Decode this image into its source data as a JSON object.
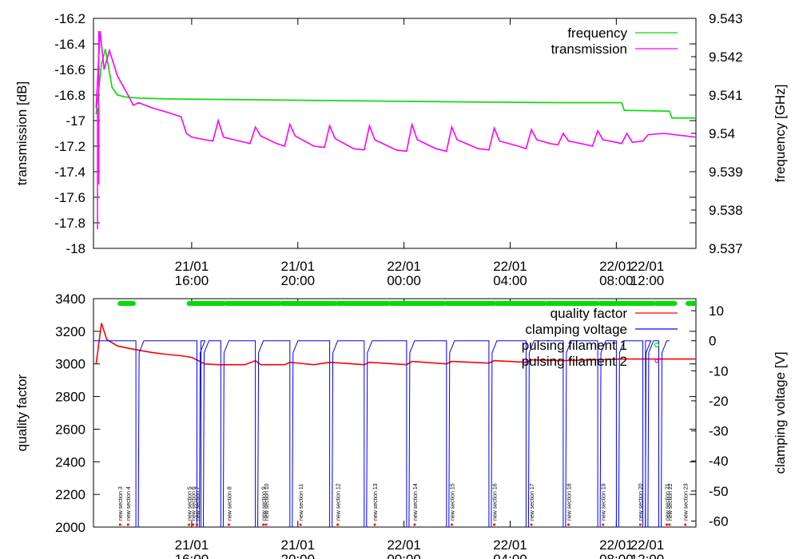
{
  "chart_data": [
    {
      "type": "line",
      "ylabel": "transmission [dB]",
      "y2label": "frequency [GHz]",
      "ylim": [
        -18,
        -16.2
      ],
      "y2lim": [
        9.537,
        9.543
      ],
      "yticks": [
        "-16.2",
        "-16.4",
        "-16.6",
        "-16.8",
        "-17",
        "-17.2",
        "-17.4",
        "-17.6",
        "-17.8",
        "-18"
      ],
      "y2ticks": [
        "9.543",
        "9.542",
        "9.541",
        "9.54",
        "9.539",
        "9.538",
        "9.537"
      ],
      "xlim_hours": [
        12.3,
        35.0
      ],
      "xticks": [
        {
          "h": 16,
          "line1": "21/01",
          "line2": "16:00"
        },
        {
          "h": 20,
          "line1": "21/01",
          "line2": "20:00"
        },
        {
          "h": 24,
          "line1": "22/01",
          "line2": "00:00"
        },
        {
          "h": 28,
          "line1": "22/01",
          "line2": "04:00"
        },
        {
          "h": 32,
          "line1": "22/01",
          "line2": "08:00"
        },
        {
          "h": 36,
          "line1": "22/01",
          "line2": "12:00"
        }
      ],
      "legend": [
        "frequency",
        "transmission"
      ],
      "series": [
        {
          "name": "frequency",
          "axis": "y2",
          "color": "#00dd00",
          "points": [
            [
              12.4,
              9.5405
            ],
            [
              12.6,
              9.5418
            ],
            [
              12.75,
              9.5422
            ],
            [
              12.9,
              9.5416
            ],
            [
              13.0,
              9.5412
            ],
            [
              13.2,
              9.541
            ],
            [
              13.5,
              9.54095
            ],
            [
              14.0,
              9.54092
            ],
            [
              15.0,
              9.5409
            ],
            [
              18.0,
              9.54088
            ],
            [
              22.0,
              9.54085
            ],
            [
              26.0,
              9.54082
            ],
            [
              30.0,
              9.5408
            ],
            [
              32.2,
              9.5408
            ],
            [
              32.3,
              9.5406
            ],
            [
              34.0,
              9.54058
            ],
            [
              34.1,
              9.5404
            ],
            [
              35.0,
              9.5404
            ]
          ]
        },
        {
          "name": "transmission",
          "axis": "y",
          "color": "#ff00ff",
          "points": [
            [
              12.4,
              -16.9
            ],
            [
              12.55,
              -16.3
            ],
            [
              12.7,
              -16.6
            ],
            [
              12.9,
              -16.45
            ],
            [
              13.2,
              -16.65
            ],
            [
              13.6,
              -16.8
            ],
            [
              13.8,
              -16.88
            ],
            [
              14.0,
              -16.86
            ],
            [
              14.5,
              -16.9
            ],
            [
              15.0,
              -16.93
            ],
            [
              15.6,
              -16.97
            ],
            [
              15.8,
              -17.1
            ],
            [
              16.0,
              -17.13
            ],
            [
              16.5,
              -17.15
            ],
            [
              16.8,
              -17.16
            ],
            [
              17.0,
              -17.0
            ],
            [
              17.2,
              -17.13
            ],
            [
              17.8,
              -17.16
            ],
            [
              18.2,
              -17.18
            ],
            [
              18.4,
              -17.05
            ],
            [
              18.6,
              -17.12
            ],
            [
              19.2,
              -17.18
            ],
            [
              19.5,
              -17.2
            ],
            [
              19.7,
              -17.03
            ],
            [
              19.9,
              -17.12
            ],
            [
              20.6,
              -17.2
            ],
            [
              21.0,
              -17.21
            ],
            [
              21.2,
              -17.04
            ],
            [
              21.4,
              -17.14
            ],
            [
              22.1,
              -17.22
            ],
            [
              22.5,
              -17.23
            ],
            [
              22.7,
              -17.04
            ],
            [
              22.9,
              -17.15
            ],
            [
              23.7,
              -17.23
            ],
            [
              24.1,
              -17.24
            ],
            [
              24.3,
              -17.03
            ],
            [
              24.5,
              -17.15
            ],
            [
              25.2,
              -17.22
            ],
            [
              25.6,
              -17.24
            ],
            [
              25.8,
              -17.05
            ],
            [
              26.0,
              -17.15
            ],
            [
              26.8,
              -17.22
            ],
            [
              27.2,
              -17.23
            ],
            [
              27.4,
              -17.06
            ],
            [
              27.6,
              -17.16
            ],
            [
              28.3,
              -17.2
            ],
            [
              28.6,
              -17.22
            ],
            [
              28.8,
              -17.07
            ],
            [
              29.0,
              -17.15
            ],
            [
              29.5,
              -17.18
            ],
            [
              29.8,
              -17.19
            ],
            [
              30.0,
              -17.1
            ],
            [
              30.2,
              -17.16
            ],
            [
              30.9,
              -17.19
            ],
            [
              31.1,
              -17.2
            ],
            [
              31.3,
              -17.08
            ],
            [
              31.5,
              -17.15
            ],
            [
              32.0,
              -17.17
            ],
            [
              32.2,
              -17.18
            ],
            [
              32.4,
              -17.1
            ],
            [
              32.6,
              -17.17
            ],
            [
              33.0,
              -17.16
            ],
            [
              33.2,
              -17.11
            ],
            [
              33.8,
              -17.1
            ],
            [
              35.0,
              -17.13
            ]
          ]
        }
      ],
      "spikes": [
        [
          12.45,
          -16.9,
          -17.85
        ],
        [
          12.5,
          -16.3,
          -17.5
        ]
      ]
    },
    {
      "type": "line",
      "ylabel": "quality factor",
      "y2label": "clamping voltage [V]",
      "ylim": [
        2000,
        3400
      ],
      "y2lim": [
        -62,
        14
      ],
      "yticks": [
        "3400",
        "3200",
        "3000",
        "2800",
        "2600",
        "2400",
        "2200",
        "2000"
      ],
      "y2ticks": [
        "10",
        "0",
        "-10",
        "-20",
        "-30",
        "-40",
        "-50",
        "-60"
      ],
      "legend": [
        "quality factor",
        "clamping voltage",
        "pulsing filament 1",
        "pulsing filament 2"
      ],
      "series": [
        {
          "name": "quality factor",
          "axis": "y",
          "color": "#ff0000",
          "points": [
            [
              12.4,
              3000
            ],
            [
              12.6,
              3250
            ],
            [
              12.8,
              3150
            ],
            [
              13.2,
              3110
            ],
            [
              13.8,
              3090
            ],
            [
              14.5,
              3070
            ],
            [
              15.0,
              3060
            ],
            [
              15.6,
              3050
            ],
            [
              16.0,
              3040
            ],
            [
              16.5,
              3000
            ],
            [
              17.0,
              2995
            ],
            [
              18.0,
              2995
            ],
            [
              18.4,
              3020
            ],
            [
              18.6,
              2995
            ],
            [
              19.5,
              2995
            ],
            [
              19.7,
              3010
            ],
            [
              20.6,
              2995
            ],
            [
              21.2,
              3010
            ],
            [
              22.5,
              2995
            ],
            [
              22.7,
              3010
            ],
            [
              24.1,
              2995
            ],
            [
              24.3,
              3015
            ],
            [
              25.6,
              3000
            ],
            [
              25.8,
              3015
            ],
            [
              27.2,
              3005
            ],
            [
              27.4,
              3020
            ],
            [
              28.6,
              3010
            ],
            [
              28.8,
              3025
            ],
            [
              30.0,
              3020
            ],
            [
              31.1,
              3025
            ],
            [
              32.2,
              3030
            ],
            [
              33.0,
              3030
            ],
            [
              35.0,
              3030
            ]
          ]
        },
        {
          "name": "clamping voltage",
          "axis": "y2",
          "color": "#0000ff",
          "base": 0,
          "pulse_value": -62,
          "pulses": [
            13.9,
            16.2,
            16.35,
            17.1,
            18.4,
            19.7,
            21.2,
            22.5,
            24.1,
            25.6,
            27.2,
            28.6,
            30.0,
            31.3,
            32.0,
            33.0,
            33.1,
            33.6
          ]
        },
        {
          "name": "pulsing filament 1",
          "axis": "y2",
          "color": "#00dd00",
          "segments": [
            [
              13.3,
              13.8
            ],
            [
              15.9,
              17.2
            ],
            [
              17.3,
              19.3
            ],
            [
              19.4,
              21.4
            ],
            [
              21.5,
              23.4
            ],
            [
              23.5,
              25.5
            ],
            [
              25.6,
              27.4
            ],
            [
              27.5,
              29.3
            ],
            [
              29.4,
              31.3
            ],
            [
              31.4,
              33.4
            ],
            [
              33.5,
              34.2
            ],
            [
              34.7,
              36.0
            ]
          ]
        }
      ],
      "annotations": [
        {
          "h": 13.3,
          "text": "new section 3"
        },
        {
          "h": 13.6,
          "text": "new section 4"
        },
        {
          "h": 15.9,
          "text": "new section 5"
        },
        {
          "h": 16.05,
          "text": "new section 6"
        },
        {
          "h": 16.2,
          "text": "new section 7"
        },
        {
          "h": 17.4,
          "text": "new section 8"
        },
        {
          "h": 18.7,
          "text": "new section 9"
        },
        {
          "h": 18.8,
          "text": "new section 10"
        },
        {
          "h": 20.1,
          "text": "new section 11"
        },
        {
          "h": 21.5,
          "text": "new section 12"
        },
        {
          "h": 22.9,
          "text": "new section 13"
        },
        {
          "h": 24.4,
          "text": "new section 14"
        },
        {
          "h": 25.8,
          "text": "new section 15"
        },
        {
          "h": 27.4,
          "text": "new section 16"
        },
        {
          "h": 28.8,
          "text": "new section 17"
        },
        {
          "h": 30.2,
          "text": "new section 18"
        },
        {
          "h": 31.5,
          "text": "new section 19"
        },
        {
          "h": 32.9,
          "text": "new section 20"
        },
        {
          "h": 33.9,
          "text": "new section 21"
        },
        {
          "h": 34.0,
          "text": "new section 22"
        },
        {
          "h": 34.6,
          "text": "new section 23"
        }
      ]
    }
  ]
}
